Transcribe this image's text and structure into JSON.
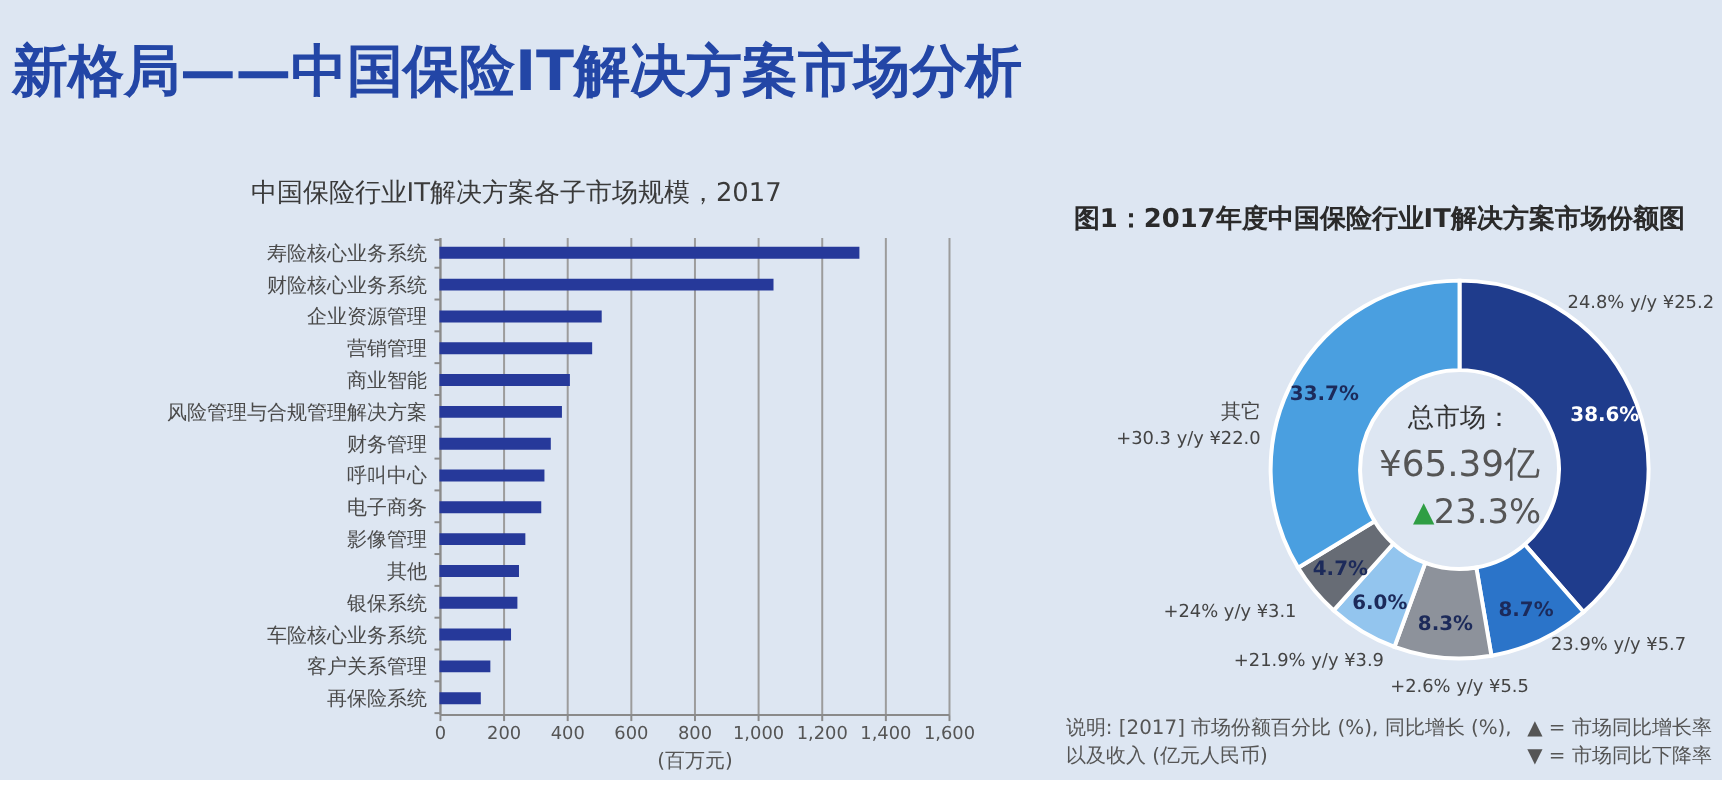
{
  "chart_data": [
    {
      "type": "bar",
      "orientation": "horizontal",
      "title": "新格局——中国保险IT解决方案市场分析",
      "subtitle": "中国保险行业IT解决方案各子市场规模，2017",
      "categories": [
        "寿险核心业务系统",
        "财险核心业务系统",
        "企业资源管理",
        "营销管理",
        "商业智能",
        "风险管理与合规管理解决方案",
        "财务管理",
        "呼叫中心",
        "电子商务",
        "影像管理",
        "其他",
        "银保系统",
        "车险核心业务系统",
        "客户关系管理",
        "再保险系统"
      ],
      "values": [
        1320,
        1050,
        510,
        480,
        410,
        385,
        350,
        330,
        320,
        270,
        250,
        245,
        225,
        160,
        130
      ],
      "color": "#26399a",
      "xlabel": "(百万元)",
      "xlim": [
        0,
        1600
      ],
      "xticks": [
        0,
        200,
        400,
        600,
        800,
        {
          "value": 1000,
          "label": "1,000"
        },
        {
          "value": 1200,
          "label": "1,200"
        },
        {
          "value": 1400,
          "label": "1,400"
        },
        {
          "value": 1600,
          "label": "1,600"
        }
      ],
      "grid": "x"
    },
    {
      "type": "donut",
      "title": "图1：2017年度中国保险行业IT解决方案市场份额图",
      "categories": [
        null,
        null,
        null,
        null,
        null,
        "其它"
      ],
      "values": [
        38.6,
        8.7,
        8.3,
        6.0,
        4.7,
        33.7
      ],
      "colors": [
        "#1f3c8c",
        "#2b74c9",
        "#8d929b",
        "#93c5ee",
        "#676c75",
        "#4a9fe0"
      ],
      "value_labels": [
        "38.6%",
        "8.7%",
        "8.3%",
        "6.0%",
        "4.7%",
        "33.7%"
      ],
      "annotations": [
        "24.8% y/y ¥25.2",
        "23.9% y/y ¥5.7",
        "+2.6% y/y ¥5.5",
        "+21.9% y/y ¥3.9",
        "+24% y/y ¥3.1",
        "+30.3 y/y ¥22.0",
        "总市场：",
        "¥65.39亿",
        "▲",
        "23.3%",
        "说明: [2017] 市场份额百分比 (%), 同比增长 (%),",
        "以及收入 (亿元人民币)",
        "▲ = 市场同比增长率",
        "▼ = 市场同比下降率"
      ]
    }
  ]
}
